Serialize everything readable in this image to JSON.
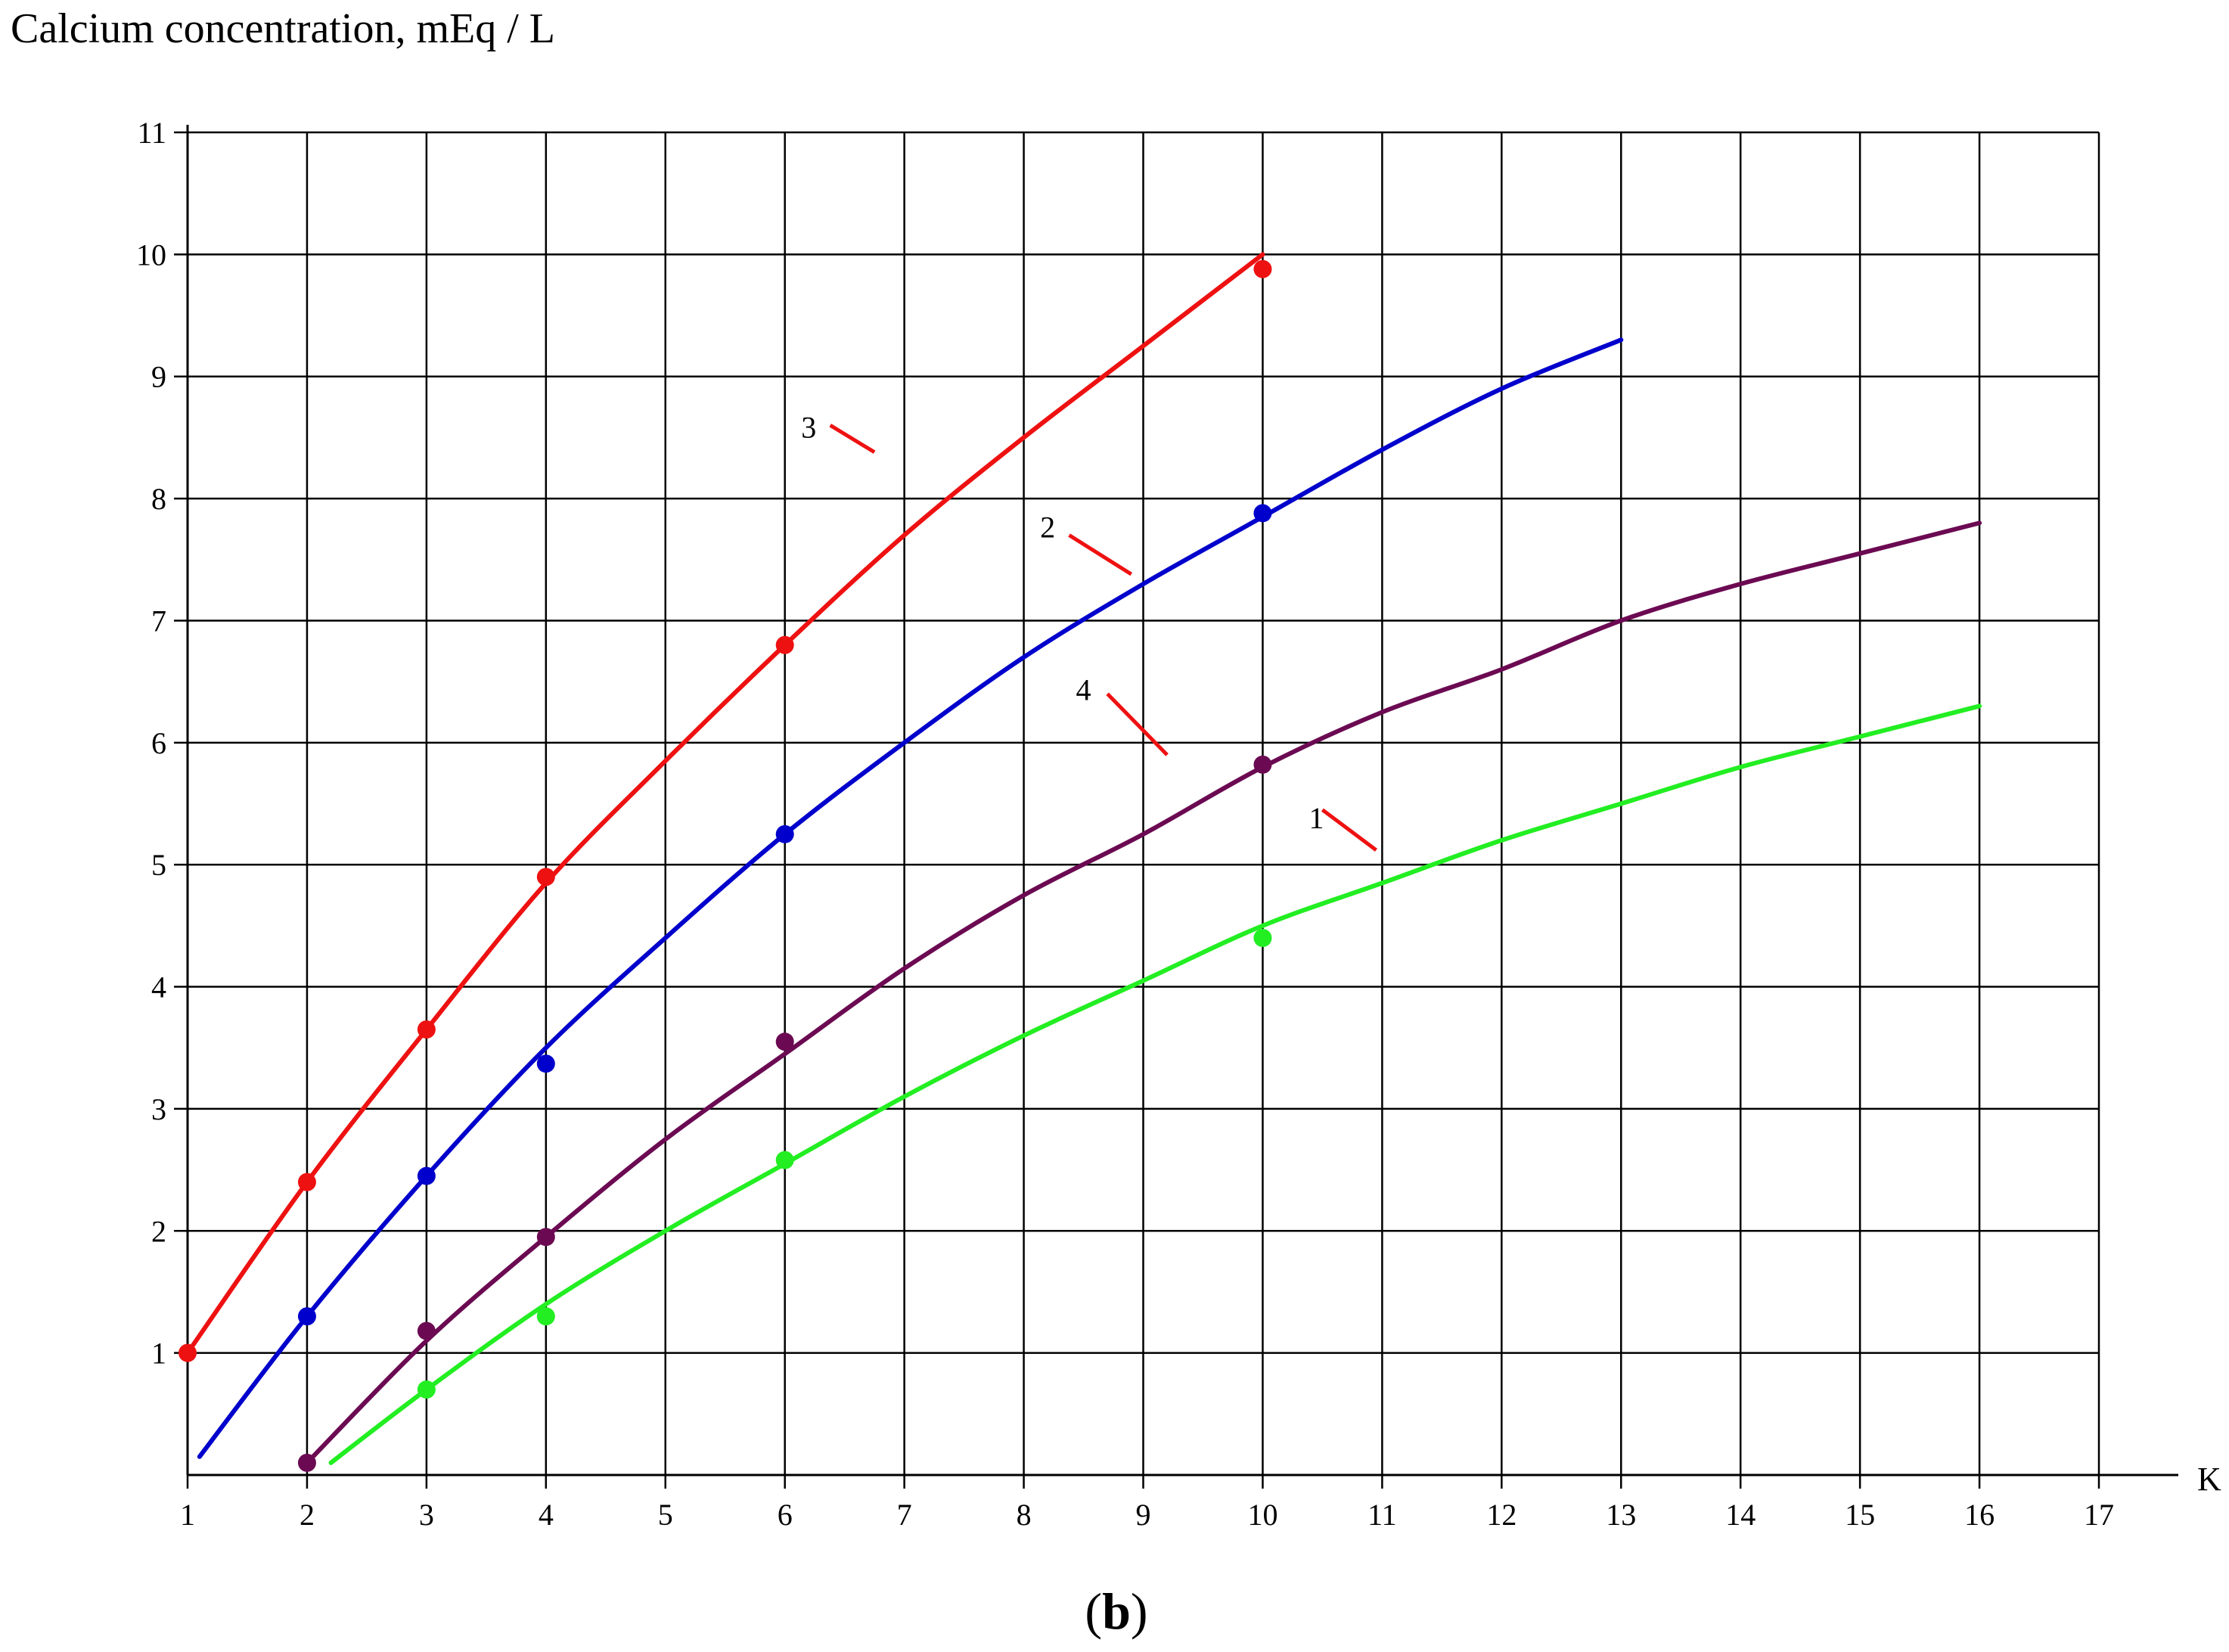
{
  "chart_data": {
    "type": "line",
    "title": "",
    "ylabel": "Calcium concentration, mEq / L",
    "xlabel": "K",
    "caption": {
      "open": "(",
      "letter": "b",
      "close": ")"
    },
    "xlim": [
      1,
      17
    ],
    "ylim": [
      0,
      11
    ],
    "x_ticks": [
      1,
      2,
      3,
      4,
      5,
      6,
      7,
      8,
      9,
      10,
      11,
      12,
      13,
      14,
      15,
      16,
      17
    ],
    "y_ticks": [
      1,
      2,
      3,
      4,
      5,
      6,
      7,
      8,
      9,
      10,
      11
    ],
    "grid": true,
    "series": [
      {
        "name": "1",
        "color": "#22ee22",
        "curve": [
          [
            2.2,
            0.1
          ],
          [
            3,
            0.7
          ],
          [
            4,
            1.4
          ],
          [
            5,
            2.0
          ],
          [
            6,
            2.55
          ],
          [
            7,
            3.1
          ],
          [
            8,
            3.6
          ],
          [
            9,
            4.05
          ],
          [
            10,
            4.5
          ],
          [
            11,
            4.85
          ],
          [
            12,
            5.2
          ],
          [
            13,
            5.5
          ],
          [
            14,
            5.8
          ],
          [
            15,
            6.05
          ],
          [
            16,
            6.3
          ]
        ],
        "points": [
          [
            3,
            0.7
          ],
          [
            4,
            1.3
          ],
          [
            6,
            2.58
          ],
          [
            10,
            4.4
          ]
        ],
        "label_pos": [
          10.45,
          5.3
        ],
        "leader_from": [
          10.5,
          5.45
        ],
        "leader_to": [
          10.95,
          5.12
        ]
      },
      {
        "name": "2",
        "color": "#0000cc",
        "curve": [
          [
            1.1,
            0.15
          ],
          [
            2,
            1.3
          ],
          [
            3,
            2.45
          ],
          [
            4,
            3.5
          ],
          [
            5,
            4.4
          ],
          [
            6,
            5.25
          ],
          [
            7,
            6.0
          ],
          [
            8,
            6.7
          ],
          [
            9,
            7.3
          ],
          [
            10,
            7.85
          ],
          [
            11,
            8.4
          ],
          [
            12,
            8.9
          ],
          [
            13,
            9.3
          ]
        ],
        "points": [
          [
            2,
            1.3
          ],
          [
            3,
            2.45
          ],
          [
            4,
            3.37
          ],
          [
            6,
            5.25
          ],
          [
            10,
            7.88
          ]
        ],
        "label_pos": [
          8.2,
          7.68
        ],
        "leader_from": [
          8.38,
          7.7
        ],
        "leader_to": [
          8.9,
          7.38
        ]
      },
      {
        "name": "3",
        "color": "#ee1111",
        "curve": [
          [
            1,
            1.0
          ],
          [
            2,
            2.4
          ],
          [
            3,
            3.65
          ],
          [
            4,
            4.85
          ],
          [
            5,
            5.85
          ],
          [
            6,
            6.8
          ],
          [
            7,
            7.7
          ],
          [
            8,
            8.5
          ],
          [
            9,
            9.25
          ],
          [
            10,
            10.0
          ]
        ],
        "points": [
          [
            1,
            1.0
          ],
          [
            2,
            2.4
          ],
          [
            3,
            3.65
          ],
          [
            4,
            4.9
          ],
          [
            6,
            6.8
          ],
          [
            10,
            9.88
          ]
        ],
        "label_pos": [
          6.2,
          8.5
        ],
        "leader_from": [
          6.38,
          8.6
        ],
        "leader_to": [
          6.75,
          8.38
        ]
      },
      {
        "name": "4",
        "color": "#6b0a52",
        "curve": [
          [
            2,
            0.1
          ],
          [
            3,
            1.1
          ],
          [
            4,
            1.95
          ],
          [
            5,
            2.75
          ],
          [
            6,
            3.45
          ],
          [
            7,
            4.15
          ],
          [
            8,
            4.75
          ],
          [
            9,
            5.25
          ],
          [
            10,
            5.8
          ],
          [
            11,
            6.25
          ],
          [
            12,
            6.6
          ],
          [
            13,
            7.0
          ],
          [
            14,
            7.3
          ],
          [
            15,
            7.55
          ],
          [
            16,
            7.8
          ]
        ],
        "points": [
          [
            2,
            0.1
          ],
          [
            3,
            1.18
          ],
          [
            4,
            1.95
          ],
          [
            6,
            3.55
          ],
          [
            10,
            5.82
          ]
        ],
        "label_pos": [
          8.5,
          6.35
        ],
        "leader_from": [
          8.7,
          6.4
        ],
        "leader_to": [
          9.2,
          5.9
        ]
      }
    ]
  }
}
